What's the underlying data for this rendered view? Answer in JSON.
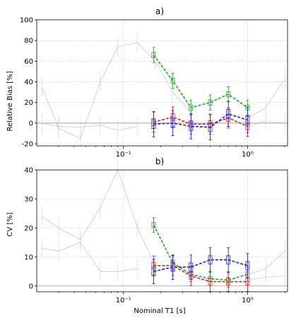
{
  "chart_data": [
    {
      "type": "line",
      "title": "a)",
      "xlabel": "",
      "ylabel": "Relative Bias  [%]",
      "xscale": "log",
      "xlim": [
        0.02,
        2.1
      ],
      "ylim": [
        -22,
        100
      ],
      "yticks": [
        -20,
        0,
        20,
        40,
        60,
        80,
        100
      ],
      "xtick_labels": [
        "10⁻¹",
        "10⁰"
      ],
      "grid": true,
      "series": [
        {
          "color": "#2ca02c",
          "style": "dashed",
          "x": [
            0.175,
            0.25,
            0.35,
            0.5,
            0.7,
            1.0
          ],
          "y": [
            66,
            41,
            15,
            20,
            28,
            15
          ]
        },
        {
          "color": "#d62728",
          "style": "dashed",
          "x": [
            0.175,
            0.25,
            0.35,
            0.5,
            0.7,
            1.0
          ],
          "y": [
            1,
            6,
            -1,
            -1,
            5,
            -3
          ]
        },
        {
          "color": "#1f1fd0",
          "style": "dashed",
          "x": [
            0.175,
            0.25,
            0.35,
            0.5,
            0.7,
            1.0
          ],
          "y": [
            -1,
            0,
            -3,
            -4,
            9,
            3
          ]
        }
      ],
      "faint_series": [
        {
          "color": "#9d9df0",
          "x": [
            0.022,
            0.03,
            0.045,
            0.065,
            0.09,
            0.13,
            0.18,
            0.25,
            0.35
          ],
          "y": [
            35,
            -5,
            -15,
            40,
            74,
            78,
            60,
            30,
            10
          ]
        },
        {
          "color": "#9d9df0",
          "x": [
            0.022,
            0.03,
            0.045,
            0.065,
            0.09,
            0.13
          ],
          "y": [
            0,
            -3,
            -4,
            -2,
            -7,
            -3
          ]
        },
        {
          "color": "#f0a0a0",
          "x": [
            1.0,
            1.4,
            2.0
          ],
          "y": [
            -3,
            2,
            0
          ]
        },
        {
          "color": "#9d9df0",
          "x": [
            1.0,
            1.4,
            2.0
          ],
          "y": [
            5,
            15,
            43
          ]
        }
      ]
    },
    {
      "type": "line",
      "title": "b)",
      "xlabel": "Nominal T1 [s]",
      "ylabel": "CV [%]",
      "xscale": "log",
      "xlim": [
        0.02,
        2.1
      ],
      "ylim": [
        -2,
        40
      ],
      "yticks": [
        0,
        10,
        20,
        30,
        40
      ],
      "xtick_labels": [
        "10⁻¹",
        "10⁰"
      ],
      "grid": true,
      "series": [
        {
          "color": "#2ca02c",
          "style": "dashed",
          "x": [
            0.175,
            0.25,
            0.35,
            0.5,
            0.7,
            1.0
          ],
          "y": [
            21,
            8,
            4,
            2.5,
            2,
            4
          ]
        },
        {
          "color": "#d62728",
          "style": "dashed",
          "x": [
            0.175,
            0.25,
            0.35,
            0.5,
            0.7,
            1.0
          ],
          "y": [
            7,
            7,
            3.5,
            1.5,
            1.5,
            1.5
          ]
        },
        {
          "color": "#1f1fd0",
          "style": "dashed",
          "x": [
            0.175,
            0.25,
            0.35,
            0.5,
            0.7,
            1.0
          ],
          "y": [
            5,
            6.5,
            6.5,
            9,
            9,
            7
          ]
        }
      ],
      "faint_series": [
        {
          "color": "#9d9df0",
          "x": [
            0.022,
            0.03,
            0.045,
            0.065,
            0.09,
            0.13,
            0.18
          ],
          "y": [
            24,
            20,
            16,
            27,
            40,
            20,
            7
          ]
        },
        {
          "color": "#9d9df0",
          "x": [
            0.022,
            0.03,
            0.045,
            0.065,
            0.09,
            0.13
          ],
          "y": [
            13,
            12,
            15,
            5,
            5,
            6
          ]
        },
        {
          "color": "#f0a0a0",
          "x": [
            1.0,
            1.4,
            2.0
          ],
          "y": [
            2,
            3,
            3.5
          ]
        },
        {
          "color": "#9d9df0",
          "x": [
            1.0,
            1.4,
            2.0
          ],
          "y": [
            4,
            6,
            12
          ]
        }
      ]
    }
  ]
}
